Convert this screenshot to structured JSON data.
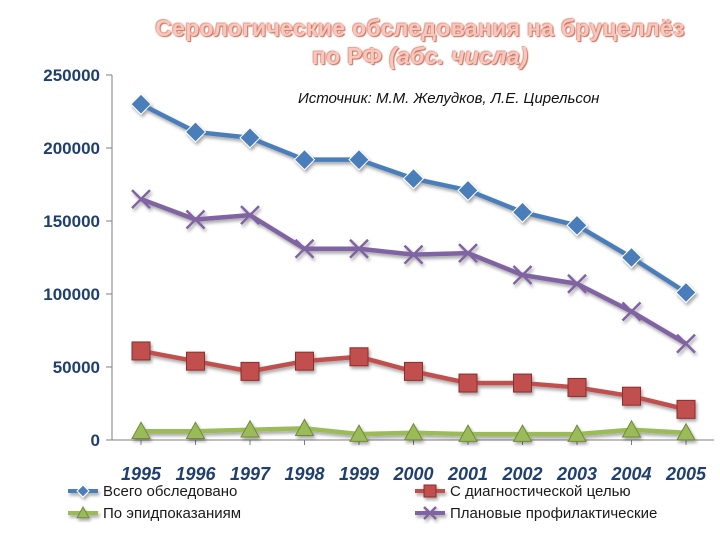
{
  "chart_data": {
    "type": "line",
    "title_line1": "Серологические обследования на бруцеллёз",
    "title_line2_regular": "по РФ ",
    "title_line2_italic": "(абс. числа)",
    "annotation": "Источник: М.М. Желудков, Л.Е. Цирельсон",
    "x": [
      "1995",
      "1996",
      "1997",
      "1998",
      "1999",
      "2000",
      "2001",
      "2002",
      "2003",
      "2004",
      "2005"
    ],
    "ylim": [
      0,
      250000
    ],
    "yticks": [
      "0",
      "50000",
      "100000",
      "150000",
      "200000",
      "250000"
    ],
    "grid": false,
    "legend_position": "bottom",
    "series": [
      {
        "name": "Всего обследовано",
        "color": "#4a7ebb",
        "marker": "diamond",
        "values": [
          230000,
          211000,
          207000,
          192000,
          192000,
          179000,
          171000,
          156000,
          147000,
          125000,
          101000
        ]
      },
      {
        "name": "С диагностической целью",
        "color": "#c0504d",
        "marker": "square",
        "values": [
          61000,
          54000,
          47000,
          54000,
          57000,
          47000,
          39000,
          39000,
          36000,
          30000,
          21000
        ]
      },
      {
        "name": "По эпидпоказаниям",
        "color": "#9bbb59",
        "marker": "triangle",
        "values": [
          6000,
          6000,
          7000,
          8000,
          4000,
          5000,
          4000,
          4000,
          4000,
          7000,
          5000
        ]
      },
      {
        "name": "Плановые профилактические",
        "color": "#8064a2",
        "marker": "x",
        "values": [
          165000,
          151000,
          154000,
          131000,
          131000,
          127000,
          128000,
          113000,
          107000,
          88000,
          66000
        ]
      }
    ]
  }
}
